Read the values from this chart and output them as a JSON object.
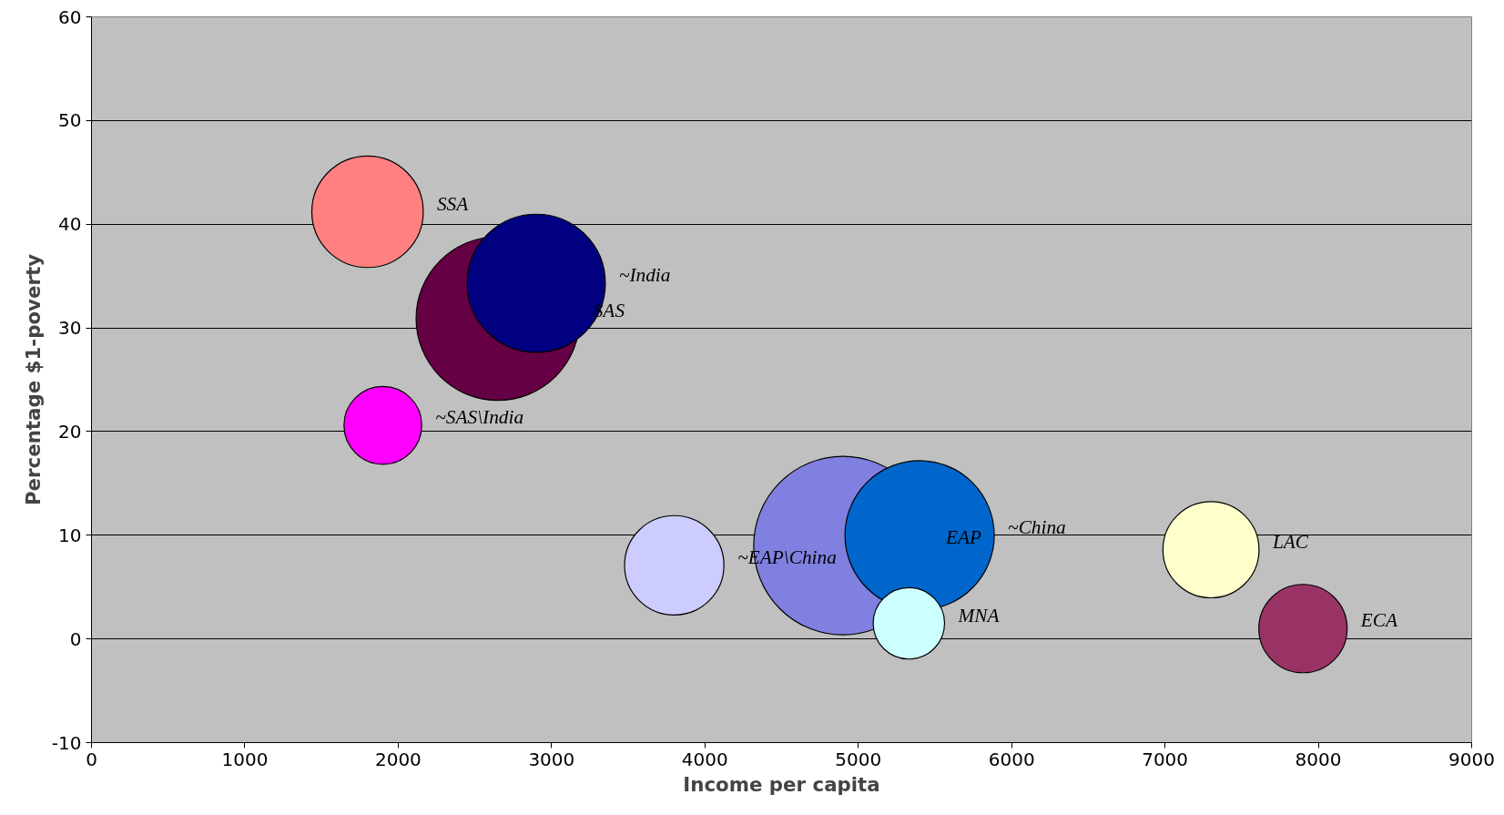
{
  "chart_data": {
    "type": "bubble",
    "xlabel": "Income per capita",
    "ylabel": "Percentage $1-poverty",
    "xlim": [
      0,
      9000
    ],
    "xticks": [
      0,
      1000,
      2000,
      3000,
      4000,
      5000,
      6000,
      7000,
      8000,
      9000
    ],
    "ylim": [
      -10,
      60
    ],
    "yticks": [
      -10,
      0,
      10,
      20,
      30,
      40,
      50,
      60
    ],
    "grid": "y",
    "legend": false,
    "series": [
      {
        "name": "SSA",
        "color": "#ff8080",
        "x": [
          1800
        ],
        "values": [
          41.2
        ],
        "sizes": [
          0.39
        ]
      },
      {
        "name": "SAS",
        "color": "#660044",
        "x": [
          2650
        ],
        "values": [
          30.9
        ],
        "sizes": [
          0.84
        ]
      },
      {
        "name": "~India",
        "color": "#000080",
        "x": [
          2900
        ],
        "values": [
          34.3
        ],
        "sizes": [
          0.6
        ]
      },
      {
        "name": "~SAS\\India",
        "color": "#ff00ff",
        "x": [
          1900
        ],
        "values": [
          20.6
        ],
        "sizes": [
          0.19
        ]
      },
      {
        "name": "~EAP\\China",
        "color": "#ccccff",
        "x": [
          3800
        ],
        "values": [
          7.1
        ],
        "sizes": [
          0.31
        ]
      },
      {
        "name": "EAP",
        "color": "#8080e0",
        "x": [
          4900
        ],
        "values": [
          9.0
        ],
        "sizes": [
          1
        ]
      },
      {
        "name": "~China",
        "color": "#0066cc",
        "x": [
          5400
        ],
        "values": [
          10
        ],
        "sizes": [
          0.7
        ]
      },
      {
        "name": "MNA",
        "color": "#ccffff",
        "x": [
          5330
        ],
        "values": [
          1.5
        ],
        "sizes": [
          0.16
        ]
      },
      {
        "name": "LAC",
        "color": "#ffffcc",
        "x": [
          7300
        ],
        "values": [
          8.6
        ],
        "sizes": [
          0.29
        ]
      },
      {
        "name": "ECA",
        "color": "#993366",
        "x": [
          7900
        ],
        "values": [
          1.0
        ],
        "sizes": [
          0.245
        ]
      }
    ]
  }
}
